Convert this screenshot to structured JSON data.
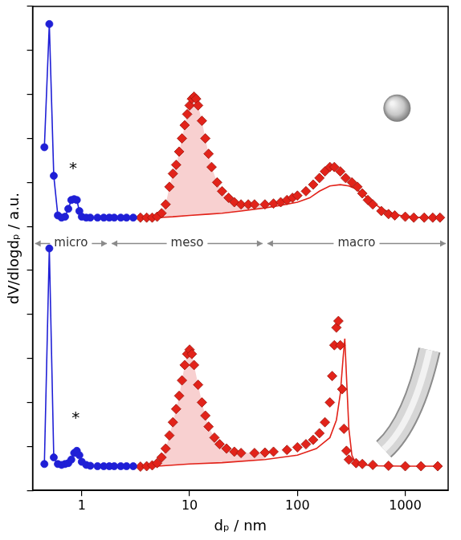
{
  "chart_data": {
    "type": "line",
    "x_label": "dₚ / nm",
    "y_label": "dV/dlogdₚ / a.u.",
    "log": "x",
    "grid": false,
    "tick_labels": "x",
    "xlim": [
      0.35,
      2500
    ],
    "xticks": [
      1,
      10,
      100,
      1000
    ],
    "ylim": [
      0,
      11
    ],
    "yticks": [
      0,
      1,
      2,
      3,
      4,
      5,
      6,
      7,
      8,
      9,
      10,
      11
    ],
    "regions": [
      {
        "label": "micro",
        "range": [
          0.35,
          1.8
        ]
      },
      {
        "label": "meso",
        "range": [
          1.8,
          50
        ]
      },
      {
        "label": "macro",
        "range": [
          50,
          2500
        ]
      }
    ],
    "annotations": [
      {
        "text": "*",
        "x": 0.83,
        "y": 7.3
      },
      {
        "text": "*",
        "x": 0.88,
        "y": 1.63
      }
    ],
    "series": [
      {
        "color": "#1f1fd6",
        "marker": "circle",
        "line_style": "solid",
        "x": [
          0.45,
          0.5,
          0.55,
          0.6,
          0.65,
          0.7,
          0.75,
          0.8,
          0.85,
          0.9,
          0.95,
          1.0,
          1.1,
          1.2,
          1.4,
          1.6,
          1.8,
          2.0,
          2.3,
          2.6,
          3.0
        ],
        "values": [
          7.8,
          10.6,
          7.15,
          6.25,
          6.2,
          6.22,
          6.4,
          6.6,
          6.62,
          6.6,
          6.35,
          6.22,
          6.2,
          6.2,
          6.2,
          6.2,
          6.2,
          6.2,
          6.2,
          6.2,
          6.2
        ]
      },
      {
        "color": "#e2231a",
        "marker": "diamond",
        "line_style": "none",
        "x": [
          3.5,
          4,
          4.5,
          5,
          5.5,
          6,
          6.5,
          7,
          7.5,
          8,
          8.5,
          9,
          9.5,
          10,
          10.5,
          11,
          11.5,
          12,
          13,
          14,
          15,
          16,
          18,
          20,
          23,
          26,
          30,
          35,
          40,
          50,
          60,
          70,
          80,
          90,
          100,
          120,
          140,
          160,
          180,
          200,
          220,
          250,
          280,
          320,
          360,
          400,
          450,
          500,
          600,
          700,
          800,
          1000,
          1200,
          1500,
          1800,
          2100
        ],
        "values": [
          6.2,
          6.2,
          6.2,
          6.22,
          6.3,
          6.5,
          6.9,
          7.2,
          7.4,
          7.7,
          8.0,
          8.3,
          8.55,
          8.75,
          8.9,
          8.95,
          8.9,
          8.75,
          8.4,
          8.0,
          7.65,
          7.35,
          7.0,
          6.8,
          6.65,
          6.55,
          6.5,
          6.5,
          6.5,
          6.5,
          6.52,
          6.55,
          6.6,
          6.65,
          6.7,
          6.8,
          6.95,
          7.1,
          7.25,
          7.35,
          7.35,
          7.25,
          7.1,
          7.0,
          6.9,
          6.75,
          6.6,
          6.5,
          6.35,
          6.28,
          6.25,
          6.22,
          6.2,
          6.2,
          6.2,
          6.2
        ]
      },
      {
        "color": "#e2231a",
        "marker": "none",
        "line_style": "solid",
        "x": [
          3.5,
          5,
          7,
          10,
          15,
          20,
          30,
          50,
          70,
          100,
          130,
          160,
          200,
          250,
          300,
          350,
          400,
          500,
          600,
          800,
          1000,
          1500,
          2100
        ],
        "values": [
          6.2,
          6.2,
          6.22,
          6.25,
          6.28,
          6.3,
          6.35,
          6.42,
          6.48,
          6.55,
          6.65,
          6.8,
          6.92,
          6.95,
          6.92,
          6.85,
          6.75,
          6.55,
          6.4,
          6.28,
          6.22,
          6.2,
          6.2
        ]
      },
      {
        "color": "#1f1fd6",
        "marker": "circle",
        "line_style": "solid",
        "x": [
          0.45,
          0.5,
          0.55,
          0.6,
          0.65,
          0.7,
          0.75,
          0.8,
          0.85,
          0.9,
          0.95,
          1.0,
          1.1,
          1.2,
          1.4,
          1.6,
          1.8,
          2.0,
          2.3,
          2.6,
          3.0
        ],
        "values": [
          0.6,
          5.5,
          0.75,
          0.6,
          0.58,
          0.6,
          0.62,
          0.7,
          0.85,
          0.9,
          0.8,
          0.65,
          0.58,
          0.56,
          0.55,
          0.55,
          0.55,
          0.55,
          0.55,
          0.55,
          0.55
        ]
      },
      {
        "color": "#e2231a",
        "marker": "diamond",
        "line_style": "none",
        "x": [
          3.5,
          4,
          4.5,
          5,
          5.5,
          6,
          6.5,
          7,
          7.5,
          8,
          8.5,
          9,
          9.5,
          10,
          10.5,
          11,
          12,
          13,
          14,
          15,
          17,
          19,
          22,
          26,
          30,
          40,
          50,
          60,
          80,
          100,
          120,
          140,
          160,
          180,
          200,
          210,
          220,
          230,
          240,
          250,
          260,
          270,
          285,
          300,
          350,
          400,
          500,
          700,
          1000,
          1400,
          2000
        ],
        "values": [
          0.54,
          0.55,
          0.57,
          0.62,
          0.75,
          0.95,
          1.25,
          1.55,
          1.85,
          2.15,
          2.5,
          2.85,
          3.1,
          3.2,
          3.1,
          2.85,
          2.4,
          2.0,
          1.7,
          1.45,
          1.2,
          1.05,
          0.95,
          0.88,
          0.85,
          0.85,
          0.86,
          0.88,
          0.92,
          0.98,
          1.05,
          1.15,
          1.3,
          1.55,
          2.0,
          2.6,
          3.3,
          3.7,
          3.85,
          3.3,
          2.3,
          1.4,
          0.9,
          0.7,
          0.62,
          0.6,
          0.58,
          0.56,
          0.55,
          0.55,
          0.55
        ]
      },
      {
        "color": "#e2231a",
        "marker": "none",
        "line_style": "solid",
        "x": [
          3.5,
          5,
          10,
          20,
          50,
          100,
          150,
          200,
          230,
          250,
          265,
          275,
          285,
          300,
          320,
          350,
          500,
          1000,
          2000
        ],
        "values": [
          0.54,
          0.55,
          0.6,
          0.63,
          0.7,
          0.8,
          0.95,
          1.2,
          1.6,
          2.2,
          3.0,
          3.45,
          2.6,
          1.4,
          0.8,
          0.6,
          0.56,
          0.55,
          0.55
        ]
      }
    ]
  }
}
